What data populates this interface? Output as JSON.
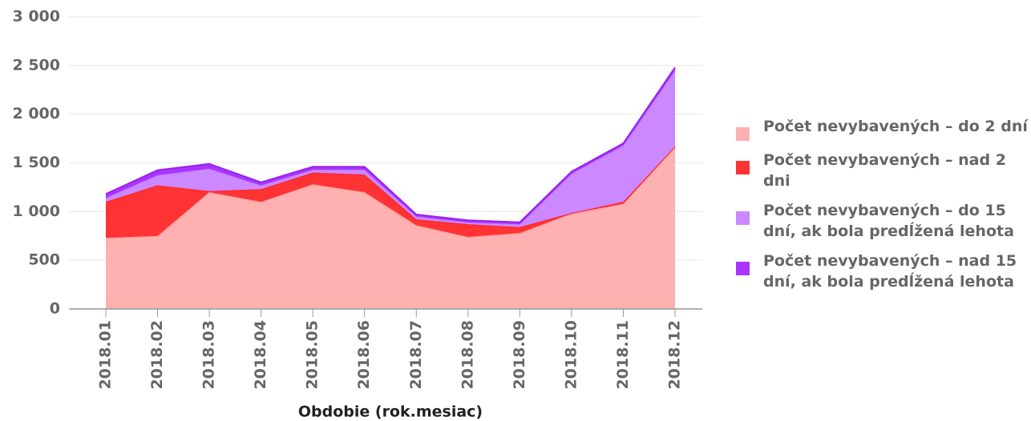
{
  "chart_data": {
    "type": "stacked_area",
    "xlabel": "Obdobie (rok.mesiac)",
    "categories": [
      "2018.01",
      "2018.02",
      "2018.03",
      "2018.04",
      "2018.05",
      "2018.06",
      "2018.07",
      "2018.08",
      "2018.09",
      "2018.10",
      "2018.11",
      "2018.12"
    ],
    "series": [
      {
        "name": "Počet nevybavených – do 2 dní",
        "color": "#ffb0b0",
        "line": "#ff9999",
        "values": [
          730,
          750,
          1200,
          1100,
          1280,
          1200,
          860,
          740,
          780,
          980,
          1080,
          1660
        ]
      },
      {
        "name": "Počet nevybavených – nad 2 dni",
        "color": "#ff3333",
        "line": "#ff2222",
        "values": [
          370,
          520,
          10,
          130,
          120,
          180,
          60,
          130,
          60,
          5,
          20,
          10
        ]
      },
      {
        "name": "Počet nevybavených – do 15 dní, ak bola predĺžená lehota",
        "color": "#cc88ff",
        "line": "#bb77ff",
        "values": [
          40,
          105,
          230,
          40,
          30,
          50,
          30,
          20,
          30,
          405,
          580,
          780
        ]
      },
      {
        "name": "Počet nevybavených – nad 15 dní, ak bola predĺžená lehota",
        "color": "#aa33ff",
        "line": "#9922ee",
        "values": [
          40,
          50,
          50,
          30,
          30,
          30,
          20,
          20,
          20,
          20,
          20,
          30
        ]
      }
    ],
    "ylim": [
      0,
      3000
    ],
    "yticks": [
      0,
      500,
      {
        "value": 1000,
        "label": "1 000"
      },
      {
        "value": 1500,
        "label": "1 500"
      },
      {
        "value": 2000,
        "label": "2 000"
      },
      {
        "value": 2500,
        "label": "2 500"
      },
      {
        "value": 3000,
        "label": "3 000"
      }
    ],
    "grid": true,
    "legend": "right"
  }
}
